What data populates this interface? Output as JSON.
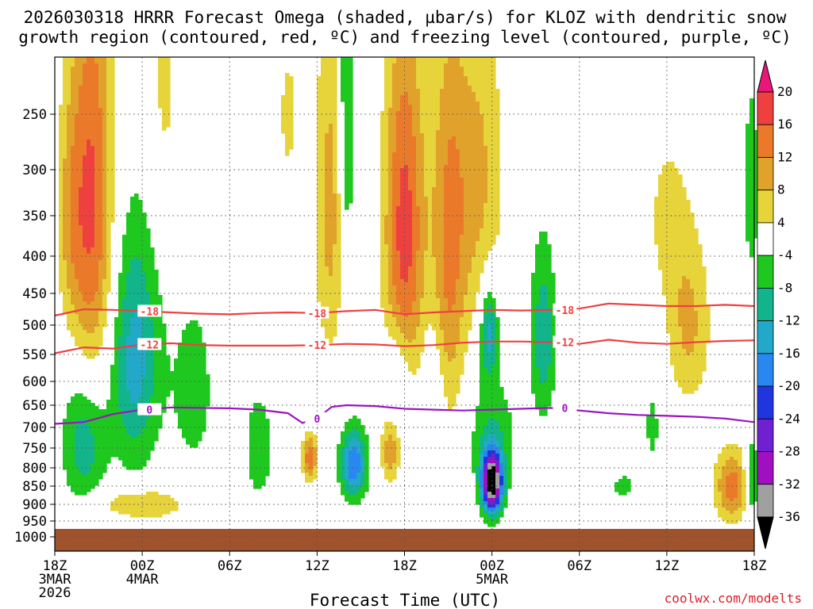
{
  "chart_data": {
    "type": "heatmap",
    "title_line1": "2026030318 HRRR Forecast Omega (shaded, µbar/s) for KLOZ with dendritic snow",
    "title_line2": "growth region (contoured, red, ºC) and freezing level (contoured, purple, ºC)",
    "xlabel": "Forecast Time (UTC)",
    "credit": "coolwx.com/modelts",
    "x_range_hours": [
      0,
      48
    ],
    "y_range_hpa": [
      1000,
      200
    ],
    "y_ticks": [
      250,
      300,
      350,
      400,
      450,
      500,
      550,
      600,
      650,
      700,
      750,
      800,
      850,
      900,
      950,
      1000
    ],
    "x_ticks": [
      {
        "hour": 0,
        "line1": "18Z",
        "line2": "3MAR",
        "line3": "2026"
      },
      {
        "hour": 6,
        "line1": "00Z",
        "line2": "4MAR",
        "line3": ""
      },
      {
        "hour": 12,
        "line1": "06Z",
        "line2": "",
        "line3": ""
      },
      {
        "hour": 18,
        "line1": "12Z",
        "line2": "",
        "line3": ""
      },
      {
        "hour": 24,
        "line1": "18Z",
        "line2": "",
        "line3": ""
      },
      {
        "hour": 30,
        "line1": "00Z",
        "line2": "5MAR",
        "line3": ""
      },
      {
        "hour": 36,
        "line1": "06Z",
        "line2": "",
        "line3": ""
      },
      {
        "hour": 42,
        "line1": "12Z",
        "line2": "",
        "line3": ""
      },
      {
        "hour": 48,
        "line1": "18Z",
        "line2": "",
        "line3": ""
      }
    ],
    "colorbar": {
      "labels": [
        20,
        16,
        12,
        8,
        4,
        -4,
        -8,
        -12,
        -16,
        -20,
        -24,
        -28,
        -32,
        -36
      ],
      "bins": [
        {
          "min": 16,
          "max": 20,
          "color": "#ef4040"
        },
        {
          "min": 12,
          "max": 16,
          "color": "#ea7a2a"
        },
        {
          "min": 8,
          "max": 12,
          "color": "#e1a22c"
        },
        {
          "min": 4,
          "max": 8,
          "color": "#e6d43a"
        },
        {
          "min": -4,
          "max": 4,
          "color": "#ffffff"
        },
        {
          "min": -8,
          "max": -4,
          "color": "#1ec81e"
        },
        {
          "min": -12,
          "max": -8,
          "color": "#12b48c"
        },
        {
          "min": -16,
          "max": -12,
          "color": "#22a8c8"
        },
        {
          "min": -20,
          "max": -16,
          "color": "#2888f0"
        },
        {
          "min": -24,
          "max": -20,
          "color": "#2035e0"
        },
        {
          "min": -28,
          "max": -24,
          "color": "#7020d0"
        },
        {
          "min": -32,
          "max": -28,
          "color": "#a010c0"
        },
        {
          "min": -36,
          "max": -32,
          "color": "#a0a0a0"
        }
      ],
      "over_color": "#e8187a",
      "under_color": "#000000"
    },
    "terrain_color": "#a0522d",
    "terrain_top_hpa": 975,
    "omega_features": [
      {
        "h": 2.5,
        "p": 340,
        "dh": 1.5,
        "dp": 250,
        "v": 17
      },
      {
        "h": 1.0,
        "p": 350,
        "dh": 0.9,
        "dp": 130,
        "v": 6
      },
      {
        "h": 7.5,
        "p": 225,
        "dh": 1.2,
        "dp": 140,
        "v": 5
      },
      {
        "h": 16.0,
        "p": 250,
        "dh": 0.8,
        "dp": 80,
        "v": 5
      },
      {
        "h": 19.0,
        "p": 340,
        "dh": 1.2,
        "dp": 200,
        "v": 10
      },
      {
        "h": 24.0,
        "p": 370,
        "dh": 1.4,
        "dp": 220,
        "v": 18
      },
      {
        "h": 27.0,
        "p": 410,
        "dh": 1.2,
        "dp": 260,
        "v": 12
      },
      {
        "h": 29.0,
        "p": 310,
        "dh": 1.8,
        "dp": 170,
        "v": 9
      },
      {
        "h": 43.5,
        "p": 500,
        "dh": 1.5,
        "dp": 140,
        "v": 9
      },
      {
        "h": 42.0,
        "p": 350,
        "dh": 1.5,
        "dp": 100,
        "v": 5
      },
      {
        "h": 6.0,
        "p": 900,
        "dh": 3.0,
        "dp": 45,
        "v": 9
      },
      {
        "h": 46.5,
        "p": 850,
        "dh": 1.2,
        "dp": 100,
        "v": 14
      },
      {
        "h": 17.5,
        "p": 775,
        "dh": 0.5,
        "dp": 60,
        "v": 15
      },
      {
        "h": 23.0,
        "p": 760,
        "dh": 0.6,
        "dp": 80,
        "v": 11
      },
      {
        "h": 5.5,
        "p": 560,
        "dh": 1.7,
        "dp": 220,
        "v": -14
      },
      {
        "h": 2.0,
        "p": 730,
        "dh": 1.5,
        "dp": 170,
        "v": -11
      },
      {
        "h": 20.0,
        "p": 250,
        "dh": 0.6,
        "dp": 200,
        "v": -11
      },
      {
        "h": 9.5,
        "p": 620,
        "dh": 1.6,
        "dp": 200,
        "v": -6
      },
      {
        "h": 14.0,
        "p": 750,
        "dh": 1.2,
        "dp": 170,
        "v": -6
      },
      {
        "h": 20.5,
        "p": 790,
        "dh": 0.9,
        "dp": 90,
        "v": -20
      },
      {
        "h": 30.0,
        "p": 840,
        "dh": 0.7,
        "dp": 80,
        "v": -40
      },
      {
        "h": 30.0,
        "p": 720,
        "dh": 1.6,
        "dp": 140,
        "v": -8
      },
      {
        "h": 29.8,
        "p": 510,
        "dh": 0.6,
        "dp": 80,
        "v": -14
      },
      {
        "h": 33.5,
        "p": 520,
        "dh": 0.9,
        "dp": 150,
        "v": -11
      },
      {
        "h": 23.5,
        "p": 590,
        "dh": 0.9,
        "dp": 100,
        "v": -7
      },
      {
        "h": 26.0,
        "p": 620,
        "dh": 0.8,
        "dp": 160,
        "v": -5
      },
      {
        "h": 39.0,
        "p": 850,
        "dh": 0.8,
        "dp": 40,
        "v": -6
      },
      {
        "h": 41.0,
        "p": 700,
        "dh": 0.5,
        "dp": 90,
        "v": -6
      },
      {
        "h": 47.8,
        "p": 320,
        "dh": 0.6,
        "dp": 130,
        "v": -6
      },
      {
        "h": 47.8,
        "p": 830,
        "dh": 0.5,
        "dp": 100,
        "v": -12
      }
    ],
    "contours": [
      {
        "label": "-18",
        "color": "#ef4040",
        "points": [
          [
            0,
            485
          ],
          [
            2,
            475
          ],
          [
            4,
            476
          ],
          [
            6,
            478
          ],
          [
            8,
            480
          ],
          [
            10,
            482
          ],
          [
            12,
            483
          ],
          [
            14,
            481
          ],
          [
            16,
            480
          ],
          [
            18,
            481
          ],
          [
            20,
            478
          ],
          [
            22,
            476
          ],
          [
            24,
            483
          ],
          [
            26,
            480
          ],
          [
            28,
            478
          ],
          [
            30,
            476
          ],
          [
            32,
            477
          ],
          [
            34,
            476
          ],
          [
            36,
            474
          ],
          [
            38,
            466
          ],
          [
            40,
            468
          ],
          [
            42,
            470
          ],
          [
            44,
            470
          ],
          [
            46,
            468
          ],
          [
            48,
            470
          ]
        ]
      },
      {
        "label": "-12",
        "color": "#ef4040",
        "points": [
          [
            0,
            548
          ],
          [
            2,
            538
          ],
          [
            4,
            540
          ],
          [
            6,
            533
          ],
          [
            8,
            531
          ],
          [
            10,
            534
          ],
          [
            12,
            535
          ],
          [
            14,
            535
          ],
          [
            16,
            535
          ],
          [
            18,
            534
          ],
          [
            20,
            532
          ],
          [
            22,
            533
          ],
          [
            24,
            536
          ],
          [
            26,
            534
          ],
          [
            28,
            530
          ],
          [
            30,
            528
          ],
          [
            32,
            528
          ],
          [
            34,
            529
          ],
          [
            36,
            532
          ],
          [
            38,
            525
          ],
          [
            40,
            530
          ],
          [
            42,
            532
          ],
          [
            44,
            529
          ],
          [
            46,
            527
          ],
          [
            48,
            526
          ]
        ]
      },
      {
        "label": "0",
        "color": "#9b14c0",
        "points": [
          [
            0,
            692
          ],
          [
            2,
            688
          ],
          [
            4,
            670
          ],
          [
            6,
            660
          ],
          [
            8,
            655
          ],
          [
            10,
            656
          ],
          [
            12,
            657
          ],
          [
            14,
            660
          ],
          [
            16,
            668
          ],
          [
            17,
            690
          ],
          [
            18,
            680
          ],
          [
            19,
            654
          ],
          [
            20,
            650
          ],
          [
            22,
            652
          ],
          [
            24,
            658
          ],
          [
            26,
            660
          ],
          [
            28,
            662
          ],
          [
            30,
            660
          ],
          [
            32,
            658
          ],
          [
            34,
            656
          ],
          [
            36,
            662
          ],
          [
            38,
            668
          ],
          [
            40,
            672
          ],
          [
            42,
            674
          ],
          [
            44,
            676
          ],
          [
            46,
            680
          ],
          [
            48,
            688
          ]
        ]
      }
    ]
  }
}
